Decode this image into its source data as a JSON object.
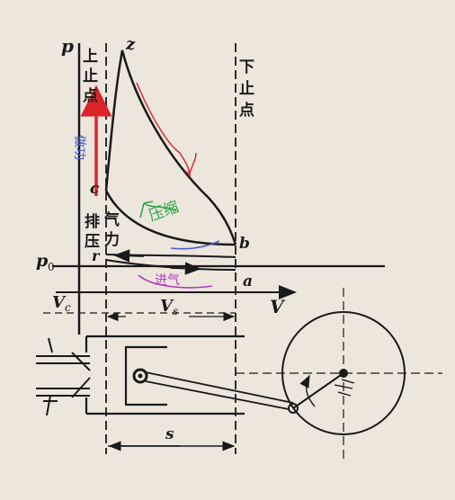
{
  "labels": {
    "p_axis": "p",
    "v_axis": "V",
    "tdc": [
      "上",
      "止",
      "点"
    ],
    "bdc": [
      "下",
      "止",
      "点"
    ],
    "exhaust": [
      "排",
      "气"
    ],
    "pressure_force": [
      "压",
      "力"
    ],
    "p0": "p",
    "p0_sub": "0",
    "z": "z",
    "c": "c",
    "b": "b",
    "a": "a",
    "r": "r",
    "vc": "V",
    "vc_sub": "c",
    "vs": "V",
    "vs_sub": "s",
    "s": "s"
  },
  "annotations": {
    "power": "做功",
    "compression": "压缩",
    "intake": "进气"
  },
  "colors": {
    "paper": "#ece6dc",
    "ink": "#1a1a1a",
    "red": "#d9252a",
    "blue": "#4a5fc9",
    "green": "#2ea84a",
    "magenta": "#b03cc0"
  }
}
